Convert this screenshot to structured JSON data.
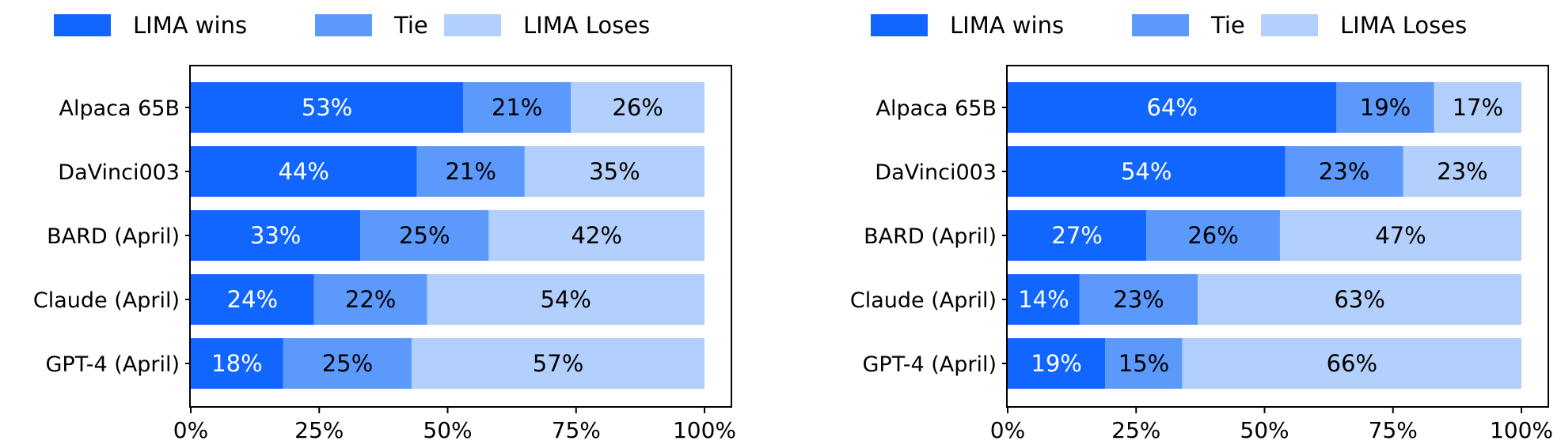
{
  "chart_data": [
    {
      "type": "bar",
      "orientation": "horizontal",
      "stacked": true,
      "title": "",
      "xlabel": "",
      "ylabel": "",
      "xlim": [
        0,
        100
      ],
      "x_ticks": [
        "0%",
        "25%",
        "50%",
        "75%",
        "100%"
      ],
      "x_tick_values": [
        0,
        25,
        50,
        75,
        100
      ],
      "categories": [
        "Alpaca 65B",
        "DaVinci003",
        "BARD (April)",
        "Claude (April)",
        "GPT-4 (April)"
      ],
      "series": [
        {
          "name": "LIMA wins",
          "values": [
            53,
            44,
            33,
            24,
            18
          ],
          "labels": [
            "53%",
            "44%",
            "33%",
            "24%",
            "18%"
          ],
          "color": "#1166ff",
          "label_color": "#ffffff"
        },
        {
          "name": "Tie",
          "values": [
            21,
            21,
            25,
            22,
            25
          ],
          "labels": [
            "21%",
            "21%",
            "25%",
            "22%",
            "25%"
          ],
          "color": "#5b9afc",
          "label_color": "#000000"
        },
        {
          "name": "LIMA Loses",
          "values": [
            26,
            35,
            42,
            54,
            57
          ],
          "labels": [
            "26%",
            "35%",
            "42%",
            "54%",
            "57%"
          ],
          "color": "#b3d0fc",
          "label_color": "#000000"
        }
      ],
      "legend": "top",
      "grid": false
    },
    {
      "type": "bar",
      "orientation": "horizontal",
      "stacked": true,
      "title": "",
      "xlabel": "",
      "ylabel": "",
      "xlim": [
        0,
        100
      ],
      "x_ticks": [
        "0%",
        "25%",
        "50%",
        "75%",
        "100%"
      ],
      "x_tick_values": [
        0,
        25,
        50,
        75,
        100
      ],
      "categories": [
        "Alpaca 65B",
        "DaVinci003",
        "BARD (April)",
        "Claude (April)",
        "GPT-4 (April)"
      ],
      "series": [
        {
          "name": "LIMA wins",
          "values": [
            64,
            54,
            27,
            14,
            19
          ],
          "labels": [
            "64%",
            "54%",
            "27%",
            "14%",
            "19%"
          ],
          "color": "#1166ff",
          "label_color": "#ffffff"
        },
        {
          "name": "Tie",
          "values": [
            19,
            23,
            26,
            23,
            15
          ],
          "labels": [
            "19%",
            "23%",
            "26%",
            "23%",
            "15%"
          ],
          "color": "#5b9afc",
          "label_color": "#000000"
        },
        {
          "name": "LIMA Loses",
          "values": [
            17,
            23,
            47,
            63,
            66
          ],
          "labels": [
            "17%",
            "23%",
            "47%",
            "63%",
            "66%"
          ],
          "color": "#b3d0fc",
          "label_color": "#000000"
        }
      ],
      "legend": "top",
      "grid": false
    }
  ]
}
